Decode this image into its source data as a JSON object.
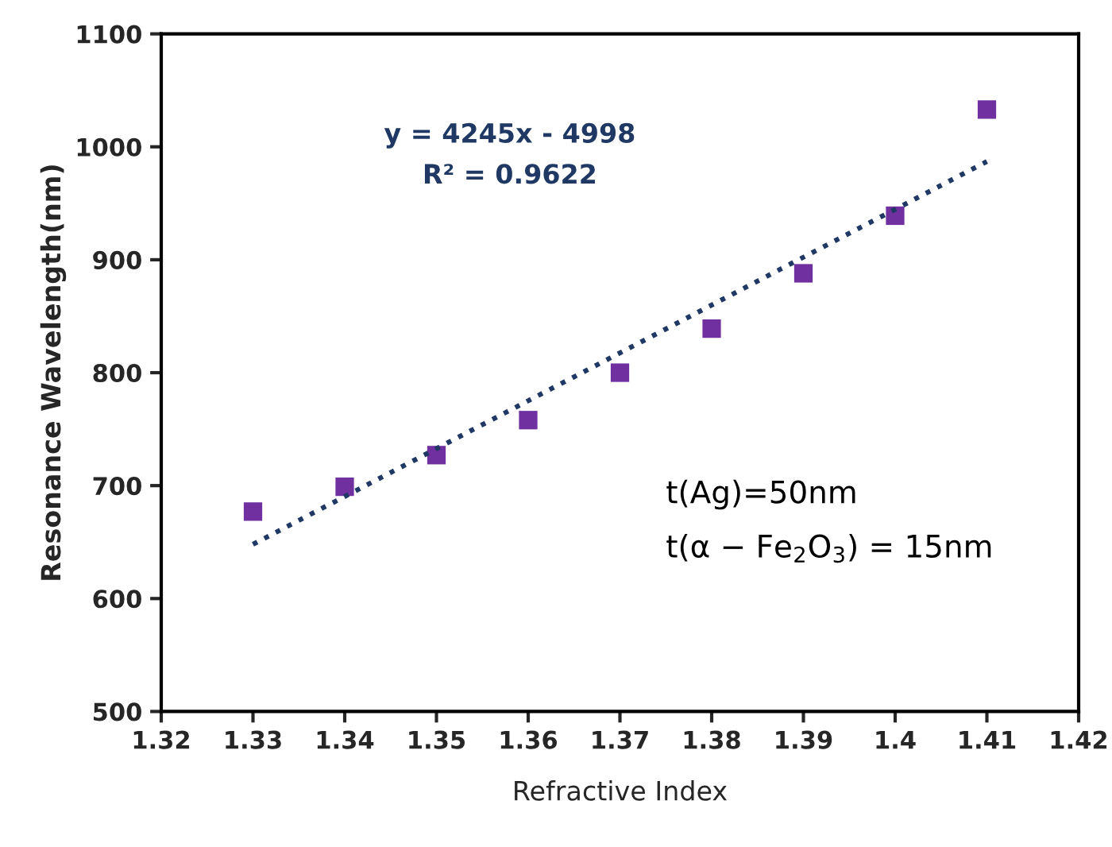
{
  "chart_data": {
    "type": "scatter",
    "xlabel": "Refractive Index",
    "ylabel": "Resonance Wavelength(nm)",
    "x": [
      1.33,
      1.34,
      1.35,
      1.36,
      1.37,
      1.38,
      1.39,
      1.4,
      1.41
    ],
    "series": [
      {
        "color": "#7030a0",
        "marker": "square",
        "values": [
          677,
          699,
          727,
          758,
          800,
          839,
          888,
          939,
          1033
        ]
      },
      {
        "type": "line",
        "color": "#1f3864",
        "line_style": "dotted",
        "marker": "none",
        "x": [
          1.33,
          1.41
        ],
        "values": [
          648,
          987
        ]
      }
    ],
    "xlim": [
      1.32,
      1.42
    ],
    "xticks": [
      1.32,
      1.33,
      1.34,
      1.35,
      1.36,
      1.37,
      1.38,
      1.39,
      1.4,
      1.41,
      1.42
    ],
    "ylim": [
      500,
      1100
    ],
    "yticks": [
      500,
      600,
      700,
      800,
      900,
      1000,
      1100
    ],
    "grid": false,
    "legend": false,
    "annotations": [
      "y = 4245x - 4998",
      "R² = 0.9622",
      "t(Ag)=50nm",
      "t(α − Fe$_{2}$O$_{3}$) = 15nm"
    ]
  }
}
